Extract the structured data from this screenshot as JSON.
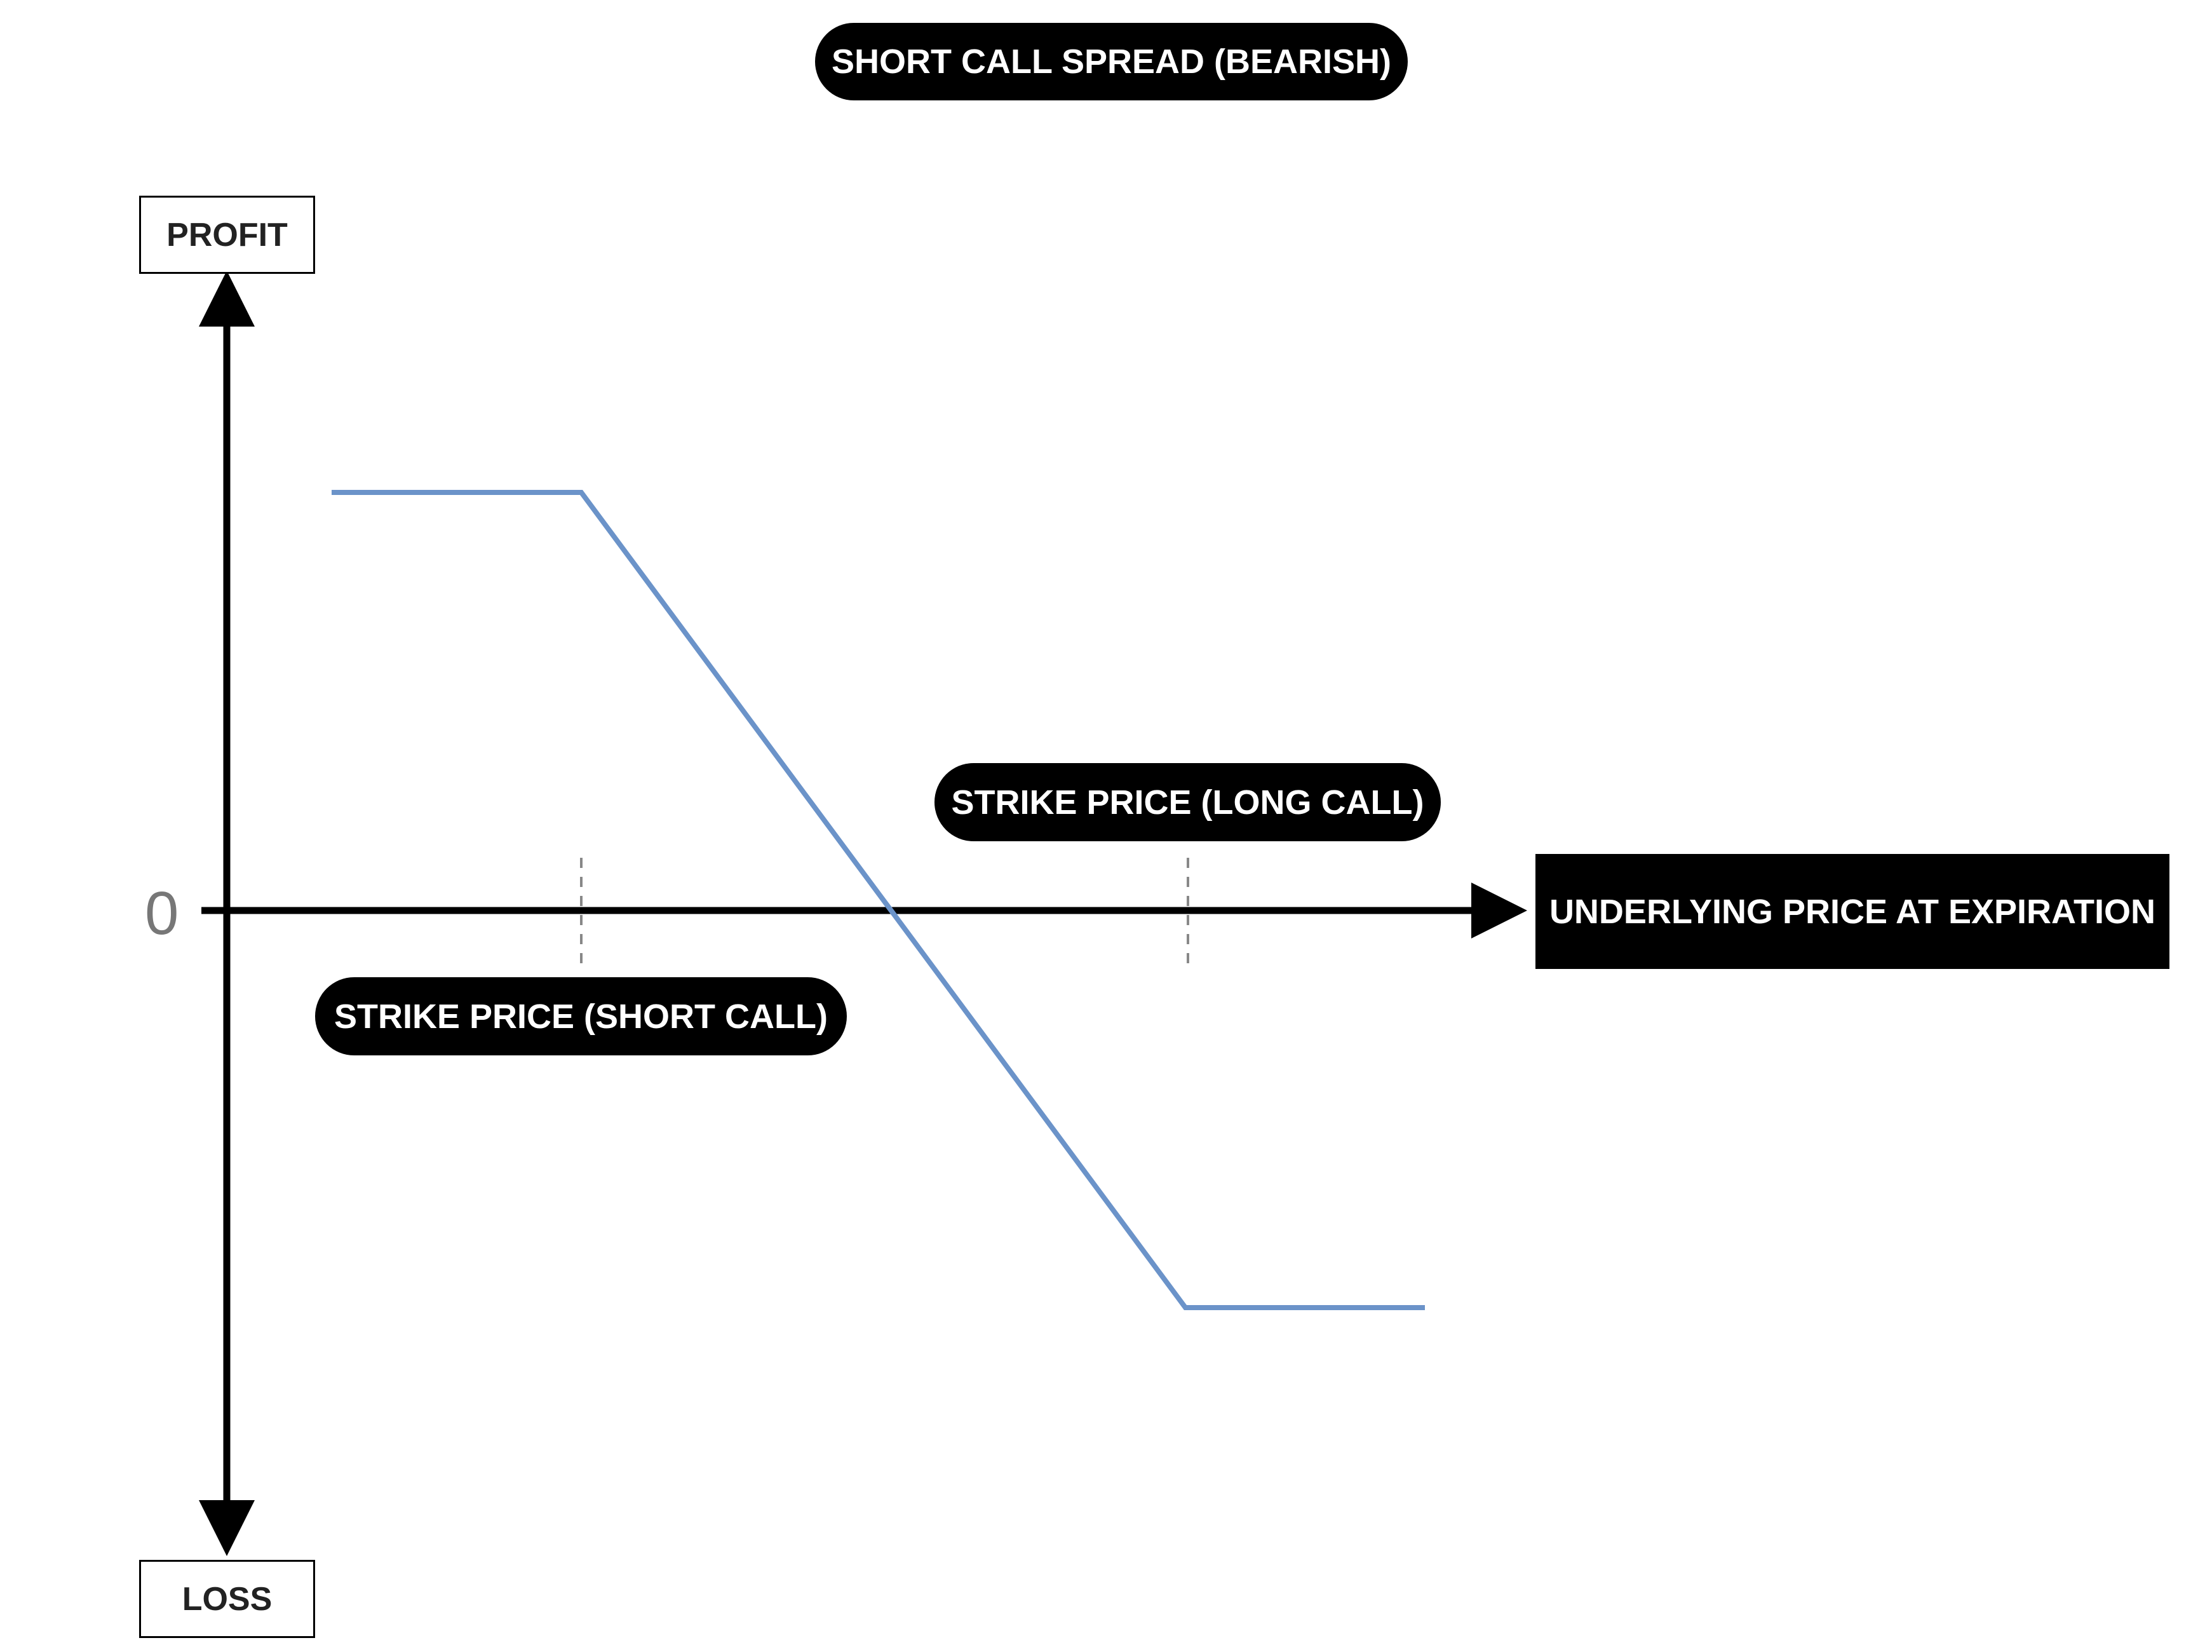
{
  "title": "SHORT CALL SPREAD (BEARISH)",
  "y_axis": {
    "top_label": "PROFIT",
    "bottom_label": "LOSS",
    "zero_label": "0"
  },
  "x_axis": {
    "label": "UNDERLYING PRICE AT EXPIRATION"
  },
  "annotations": {
    "short_call_strike": "STRIKE PRICE (SHORT CALL)",
    "long_call_strike": "STRIKE PRICE (LONG CALL)"
  },
  "colors": {
    "payoff_line": "#6b93c9",
    "axis": "#000000",
    "strike_marker": "#888888"
  }
}
